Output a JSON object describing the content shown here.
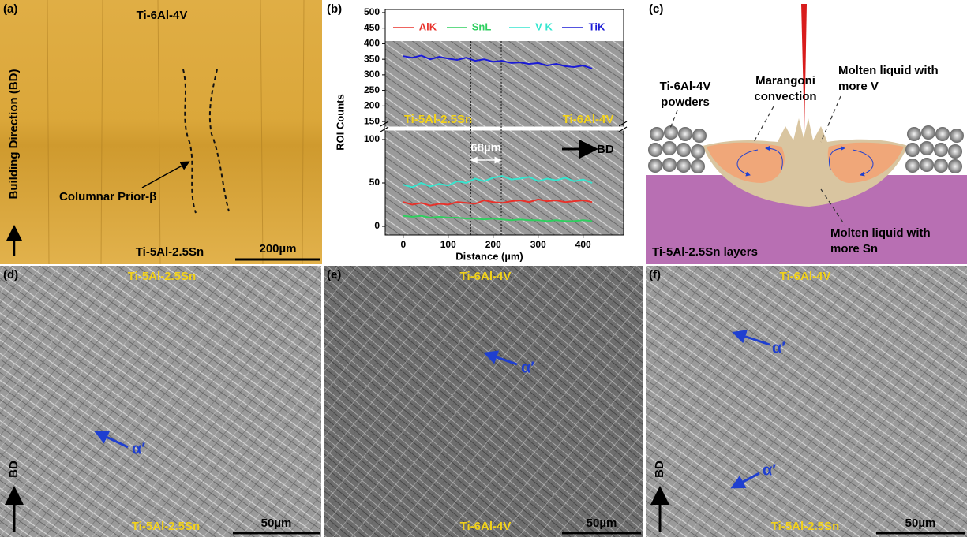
{
  "panel_a": {
    "label": "(a)",
    "top": "Ti-6Al-4V",
    "side": "Building Direction (BD)",
    "feature": "Columnar Prior-β",
    "bottom": "Ti-5Al-2.5Sn",
    "scale": "200µm"
  },
  "chart_data": {
    "type": "line",
    "label": "(b)",
    "x_label": "Distance (µm)",
    "y_label": "ROI Counts",
    "x": [
      0,
      20,
      40,
      60,
      80,
      100,
      120,
      140,
      160,
      180,
      200,
      220,
      240,
      260,
      280,
      300,
      320,
      340,
      360,
      380,
      400,
      420
    ],
    "series": [
      {
        "name": "AlK",
        "color": "#e8312a",
        "values": [
          28,
          25,
          27,
          24,
          26,
          25,
          28,
          27,
          26,
          30,
          28,
          27,
          29,
          30,
          28,
          31,
          29,
          30,
          28,
          29,
          30,
          28
        ]
      },
      {
        "name": "SnL",
        "color": "#2fcf5f",
        "values": [
          12,
          11,
          12,
          10,
          11,
          10,
          10,
          9,
          9,
          8,
          9,
          8,
          7,
          8,
          7,
          7,
          6,
          7,
          6,
          6,
          7,
          6
        ]
      },
      {
        "name": "V K",
        "color": "#35e6cf",
        "values": [
          48,
          45,
          50,
          46,
          49,
          47,
          52,
          50,
          55,
          52,
          56,
          58,
          54,
          55,
          57,
          52,
          55,
          53,
          56,
          52,
          54,
          50
        ]
      },
      {
        "name": "TiK",
        "color": "#1a1ad6",
        "values": [
          360,
          355,
          362,
          350,
          358,
          352,
          348,
          355,
          345,
          350,
          342,
          345,
          338,
          340,
          335,
          338,
          330,
          335,
          328,
          325,
          330,
          320
        ]
      }
    ],
    "xlim": [
      -40,
      490
    ],
    "xticks": [
      0,
      100,
      200,
      300,
      400
    ],
    "ylim_lower": [
      -10,
      110
    ],
    "ylim_upper": [
      135,
      510
    ],
    "yticks": [
      0,
      50,
      100,
      150,
      200,
      250,
      300,
      350,
      400,
      450,
      500
    ],
    "boundaries": [
      150,
      218
    ],
    "annotations": {
      "left": "Ti-5Al-2.5Sn",
      "right": "Ti-6Al-4V",
      "width": "68µm",
      "direction": "BD"
    }
  },
  "panel_c": {
    "label": "(c)",
    "powders": [
      "Ti-6Al-4V",
      "powders"
    ],
    "convection": [
      "Marangoni",
      "convection"
    ],
    "liquid_v": [
      "Molten liquid with",
      "more V"
    ],
    "liquid_sn": [
      "Molten liquid with",
      "more Sn"
    ],
    "substrate": "Ti-5Al-2.5Sn layers"
  },
  "panel_d": {
    "label": "(d)",
    "top": "Ti-5Al-2.5Sn",
    "bottom": "Ti-5Al-2.5Sn",
    "phases": [
      "α′"
    ],
    "direction": "BD",
    "scale": "50µm"
  },
  "panel_e": {
    "label": "(e)",
    "top": "Ti-6Al-4V",
    "bottom": "Ti-6Al-4V",
    "phases": [
      "α′"
    ],
    "scale": "50µm"
  },
  "panel_f": {
    "label": "(f)",
    "top": "Ti-6Al-4V",
    "bottom": "Ti-5Al-2.5Sn",
    "phases": [
      "α′",
      "α′"
    ],
    "direction": "BD",
    "scale": "50µm"
  }
}
